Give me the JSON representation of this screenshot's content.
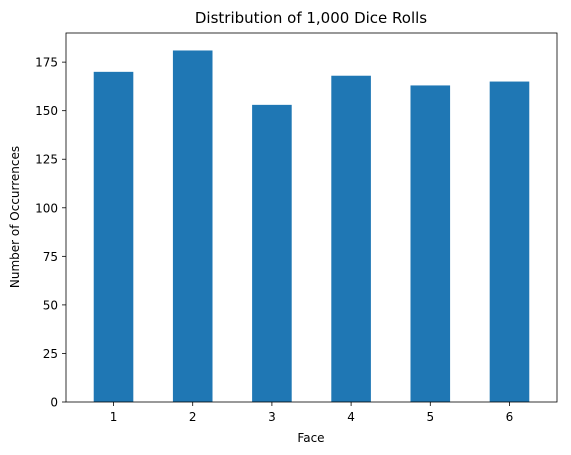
{
  "chart_data": {
    "type": "bar",
    "title": "Distribution of 1,000 Dice Rolls",
    "xlabel": "Face",
    "ylabel": "Number of Occurrences",
    "categories": [
      "1",
      "2",
      "3",
      "4",
      "5",
      "6"
    ],
    "values": [
      170,
      181,
      153,
      168,
      163,
      165
    ],
    "ylim": [
      0,
      190
    ],
    "yticks": [
      0,
      25,
      50,
      75,
      100,
      125,
      150,
      175
    ],
    "bar_color": "#1f77b4",
    "grid": false,
    "legend": "none"
  }
}
